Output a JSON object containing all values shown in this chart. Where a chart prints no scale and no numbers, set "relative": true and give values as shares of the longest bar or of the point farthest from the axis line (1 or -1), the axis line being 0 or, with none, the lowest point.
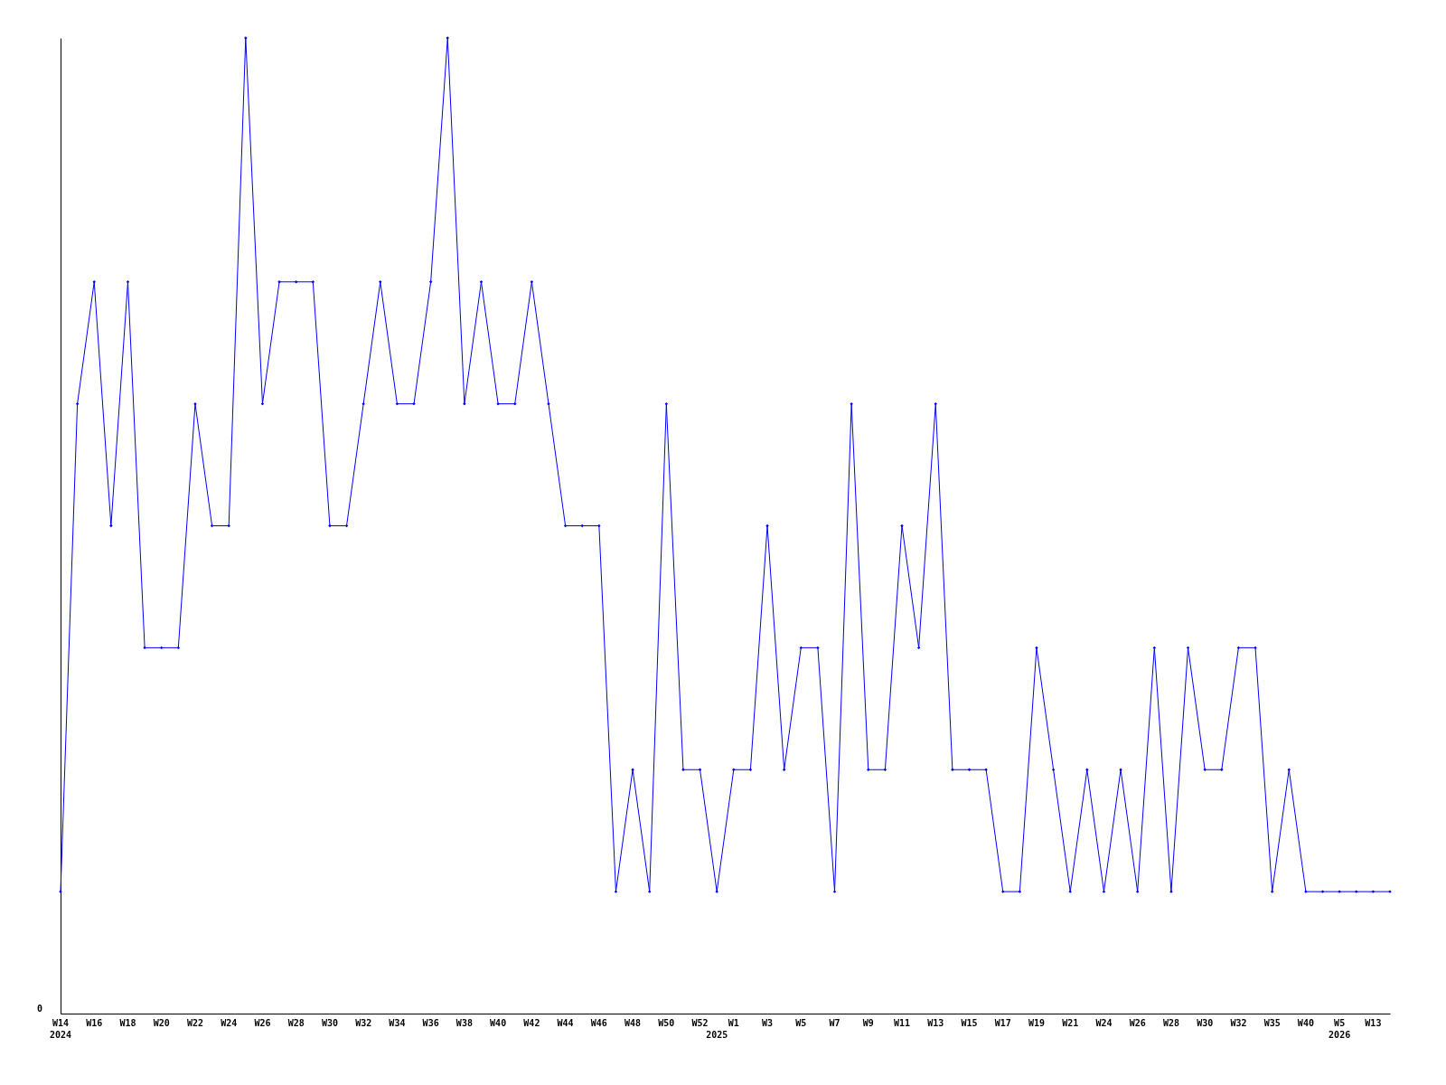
{
  "chart_data": {
    "type": "line",
    "relative": true,
    "marker": "diamond",
    "line_style": "solid",
    "categories": [
      "W14\n2024",
      null,
      "W16",
      null,
      "W18",
      null,
      "W20",
      null,
      "W22",
      null,
      "W24",
      null,
      "W26",
      null,
      "W28",
      null,
      "W30",
      null,
      "W32",
      null,
      "W34",
      null,
      "W36",
      null,
      "W38",
      null,
      "W40",
      null,
      "W42",
      null,
      "W44",
      null,
      "W46",
      null,
      "W48",
      null,
      "W50",
      null,
      "W52",
      "\n2025",
      "W1",
      null,
      "W3",
      null,
      "W5",
      null,
      "W7",
      null,
      "W9",
      null,
      "W11",
      null,
      "W13",
      null,
      "W15",
      null,
      "W17",
      null,
      "W19",
      null,
      "W21",
      null,
      "W24",
      null,
      "W26",
      null,
      "W28",
      null,
      "W30",
      null,
      "W32",
      null,
      "W35",
      null,
      "W40",
      null,
      "W5\n2026",
      null,
      "W13",
      null
    ],
    "series": [
      {
        "color": "#0000ff",
        "values": [
          0.125,
          0.625,
          0.75,
          0.5,
          0.75,
          0.375,
          0.375,
          0.375,
          0.625,
          0.5,
          0.5,
          1,
          0.625,
          0.75,
          0.75,
          0.75,
          0.5,
          0.5,
          0.625,
          0.75,
          0.625,
          0.625,
          0.75,
          1,
          0.625,
          0.75,
          0.625,
          0.625,
          0.75,
          0.625,
          0.5,
          0.5,
          0.5,
          0.125,
          0.25,
          0.125,
          0.625,
          0.25,
          0.25,
          0.125,
          0.25,
          0.25,
          0.5,
          0.25,
          0.375,
          0.375,
          0.125,
          0.625,
          0.25,
          0.25,
          0.5,
          0.375,
          0.625,
          0.25,
          0.25,
          0.25,
          0.125,
          0.125,
          0.375,
          0.25,
          0.125,
          0.25,
          0.125,
          0.25,
          0.125,
          0.375,
          0.125,
          0.375,
          0.25,
          0.25,
          0.375,
          0.375,
          0.125,
          0.25,
          0.125,
          0.125,
          0.125,
          0.125,
          0.125,
          0.125
        ]
      }
    ],
    "annotations": [
      "0"
    ]
  }
}
